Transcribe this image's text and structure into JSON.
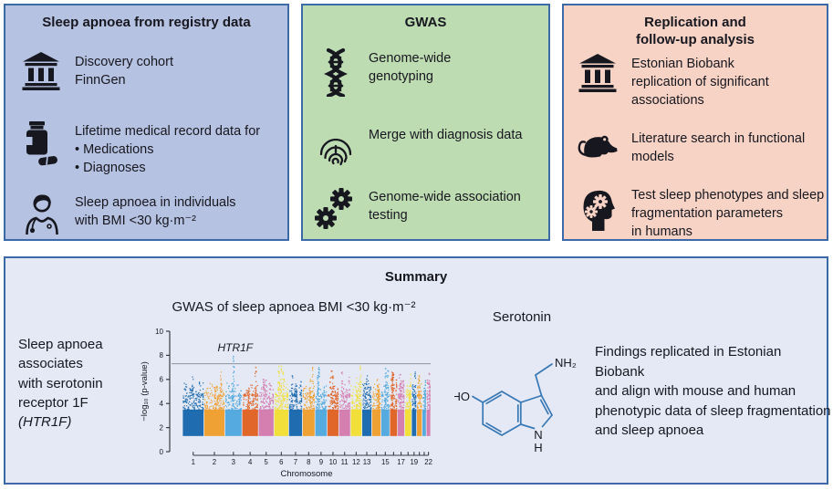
{
  "colors": {
    "ink": "#17171f",
    "border": "#3c69a8",
    "panel1_bg": "#b6c2e1",
    "panel2_bg": "#bedcb2",
    "panel3_bg": "#f7d3c5",
    "summary_bg": "#e4e9f5",
    "molecule_stroke": "#3878b5",
    "significance_line": "#8d939c",
    "axis": "#3a3a44"
  },
  "panels": {
    "registry": {
      "title": "Sleep apnoea from registry data",
      "items": [
        {
          "icon": "bank-icon",
          "text": "Discovery cohort\nFinnGen"
        },
        {
          "icon": "pill-bottle-icon",
          "text": "Lifetime medical record data for\n•  Medications\n•  Diagnoses"
        },
        {
          "icon": "doctor-icon",
          "text": "Sleep apnoea in individuals\nwith BMI <30 kg·m⁻²"
        }
      ]
    },
    "gwas": {
      "title": "GWAS",
      "items": [
        {
          "icon": "dna-icon",
          "text": "Genome-wide\ngenotyping"
        },
        {
          "icon": "fingerprint-icon",
          "text": "Merge with diagnosis data"
        },
        {
          "icon": "gears-icon",
          "text": "Genome-wide association\ntesting"
        }
      ]
    },
    "replication": {
      "title": "Replication and\nfollow-up analysis",
      "items": [
        {
          "icon": "bank-icon",
          "text": "Estonian Biobank\nreplication of significant\nassociations"
        },
        {
          "icon": "rat-icon",
          "text": "Literature search in functional\nmodels"
        },
        {
          "icon": "head-gears-icon",
          "text": "Test sleep phenotypes and sleep\nfragmentation parameters\nin humans"
        }
      ]
    }
  },
  "summary": {
    "title": "Summary",
    "left_text_lines": "Sleep apnoea\nassociates\nwith serotonin\nreceptor 1F",
    "left_text_gene": "(HTR1F)",
    "molecule_label": "Serotonin",
    "molecule_atoms": {
      "hydroxyl": "HO",
      "amine": "NH₂",
      "ring_nitrogen": "N",
      "ring_nh": "H"
    },
    "right_text": "Findings replicated in Estonian Biobank\nand align with mouse and human\nphenotypic data of sleep fragmentation\nand sleep apnoea"
  },
  "chart_data": {
    "type": "scatter",
    "subtype": "manhattan",
    "title": "GWAS of sleep apnoea BMI <30 kg·m⁻²",
    "xlabel": "Chromosome",
    "ylabel": "−log₁₀ (p-value)",
    "ylim": [
      0,
      10
    ],
    "yticks": [
      0,
      2,
      4,
      6,
      8,
      10
    ],
    "significance_line": 7.3,
    "point_floor": 1.3,
    "grid": false,
    "legend": false,
    "annotation": {
      "label": "HTR1F",
      "chromosome": 3,
      "peak": 7.9
    },
    "x_tick_labels_shown": [
      "1",
      "2",
      "3",
      "4",
      "5",
      "6",
      "7",
      "8",
      "9",
      "10",
      "11",
      "12",
      "13",
      "15",
      "17",
      "19",
      "22"
    ],
    "chromosomes": [
      {
        "chr": 1,
        "rel_length": 249,
        "color": "#1f6cb0",
        "peak": 6.2
      },
      {
        "chr": 2,
        "rel_length": 243,
        "color": "#f0a134",
        "peak": 6.6
      },
      {
        "chr": 3,
        "rel_length": 198,
        "color": "#55aadf",
        "peak": 7.9
      },
      {
        "chr": 4,
        "rel_length": 191,
        "color": "#e0662a",
        "peak": 7.0
      },
      {
        "chr": 5,
        "rel_length": 181,
        "color": "#d47fb0",
        "peak": 6.0
      },
      {
        "chr": 6,
        "rel_length": 171,
        "color": "#f2df3a",
        "peak": 7.1
      },
      {
        "chr": 7,
        "rel_length": 159,
        "color": "#1f6cb0",
        "peak": 6.3
      },
      {
        "chr": 8,
        "rel_length": 146,
        "color": "#f0a134",
        "peak": 7.0
      },
      {
        "chr": 9,
        "rel_length": 141,
        "color": "#55aadf",
        "peak": 7.0
      },
      {
        "chr": 10,
        "rel_length": 136,
        "color": "#e0662a",
        "peak": 6.7
      },
      {
        "chr": 11,
        "rel_length": 135,
        "color": "#d47fb0",
        "peak": 6.6
      },
      {
        "chr": 12,
        "rel_length": 133,
        "color": "#f2df3a",
        "peak": 7.1
      },
      {
        "chr": 13,
        "rel_length": 114,
        "color": "#1f6cb0",
        "peak": 6.3
      },
      {
        "chr": 14,
        "rel_length": 107,
        "color": "#f0a134",
        "peak": 6.0
      },
      {
        "chr": 15,
        "rel_length": 102,
        "color": "#55aadf",
        "peak": 6.9
      },
      {
        "chr": 16,
        "rel_length": 90,
        "color": "#e0662a",
        "peak": 6.6
      },
      {
        "chr": 17,
        "rel_length": 83,
        "color": "#d47fb0",
        "peak": 6.4
      },
      {
        "chr": 18,
        "rel_length": 80,
        "color": "#f2df3a",
        "peak": 6.4
      },
      {
        "chr": 19,
        "rel_length": 59,
        "color": "#1f6cb0",
        "peak": 6.6
      },
      {
        "chr": 20,
        "rel_length": 64,
        "color": "#f0a134",
        "peak": 6.3
      },
      {
        "chr": 21,
        "rel_length": 48,
        "color": "#55aadf",
        "peak": 5.9
      },
      {
        "chr": 22,
        "rel_length": 51,
        "color": "#d47fb0",
        "peak": 6.5
      }
    ]
  }
}
